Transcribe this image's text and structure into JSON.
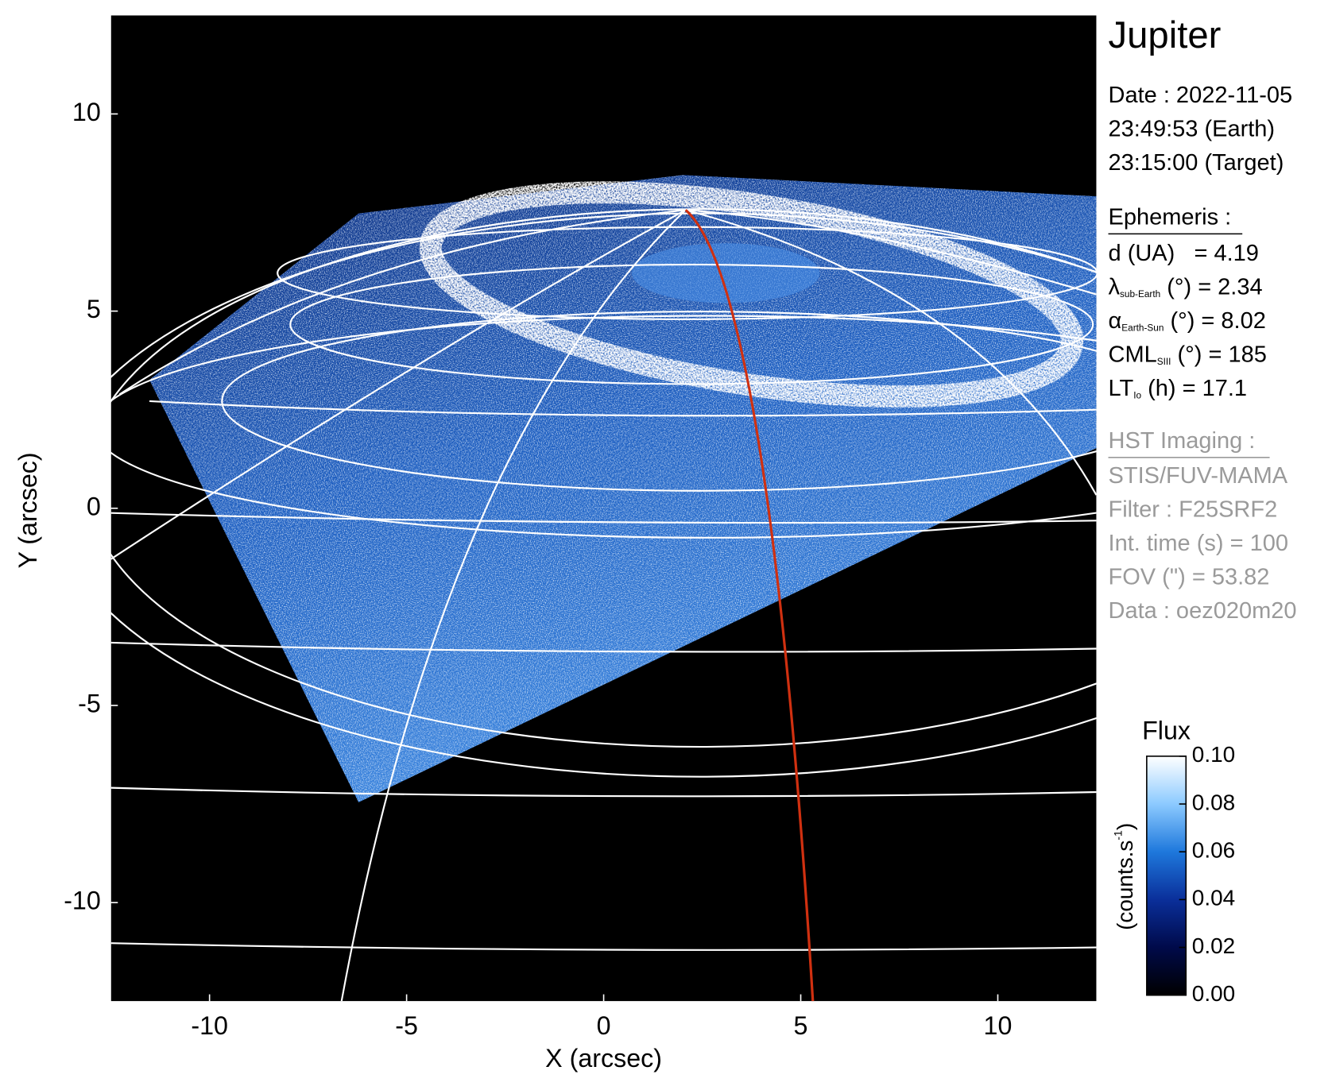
{
  "chart_data": {
    "type": "image",
    "title": "Jupiter",
    "x_label": "X (arcsec)",
    "y_label": "Y (arcsec)",
    "xlim": [
      -12.5,
      12.5
    ],
    "ylim": [
      -12.5,
      12.5
    ],
    "xticks": [
      -10,
      -5,
      0,
      5,
      10
    ],
    "yticks": [
      -10,
      -5,
      0,
      5,
      10
    ],
    "info": [
      "Date : 2022-11-05",
      "23:49:53 (Earth)",
      "23:15:00 (Target)"
    ],
    "ephemeris": {
      "heading": "Ephemeris :",
      "rows": [
        {
          "label": "d (UA)",
          "text": "   = 4.19"
        },
        {
          "label": "λ",
          "sub": "sub-Earth",
          "text": " (°) = 2.34"
        },
        {
          "label": "α",
          "sub": "Earth-Sun",
          "text": " (°) = 8.02"
        },
        {
          "label": "CML",
          "sub": "SIII",
          "text": " (°) = 185"
        },
        {
          "label": "LT",
          "sub": "Io",
          "text": " (h) = 17.1"
        }
      ]
    },
    "imaging": {
      "heading": "HST Imaging :",
      "lines": [
        "STIS/FUV-MAMA",
        "Filter : F25SRF2",
        "Int. time (s) = 100",
        "FOV (\") = 53.82",
        "Data : oez020m20"
      ]
    },
    "colorbar": {
      "title": "Flux",
      "label": "(counts.s",
      "label_sup": "-1",
      "label_end": ")",
      "lim": [
        0,
        0.1
      ],
      "ticks": [
        {
          "value": 0,
          "label": "0.00"
        },
        {
          "value": 0.02,
          "label": "0.02"
        },
        {
          "value": 0.04,
          "label": "0.04"
        },
        {
          "value": 0.06,
          "label": "0.06"
        },
        {
          "value": 0.08,
          "label": "0.08"
        },
        {
          "value": 0.1,
          "label": "0.10"
        }
      ],
      "colormap": [
        "#000000",
        "#000a4a",
        "#0a2f9a",
        "#1e78dc",
        "#8ccaff",
        "#ffffff"
      ]
    }
  }
}
